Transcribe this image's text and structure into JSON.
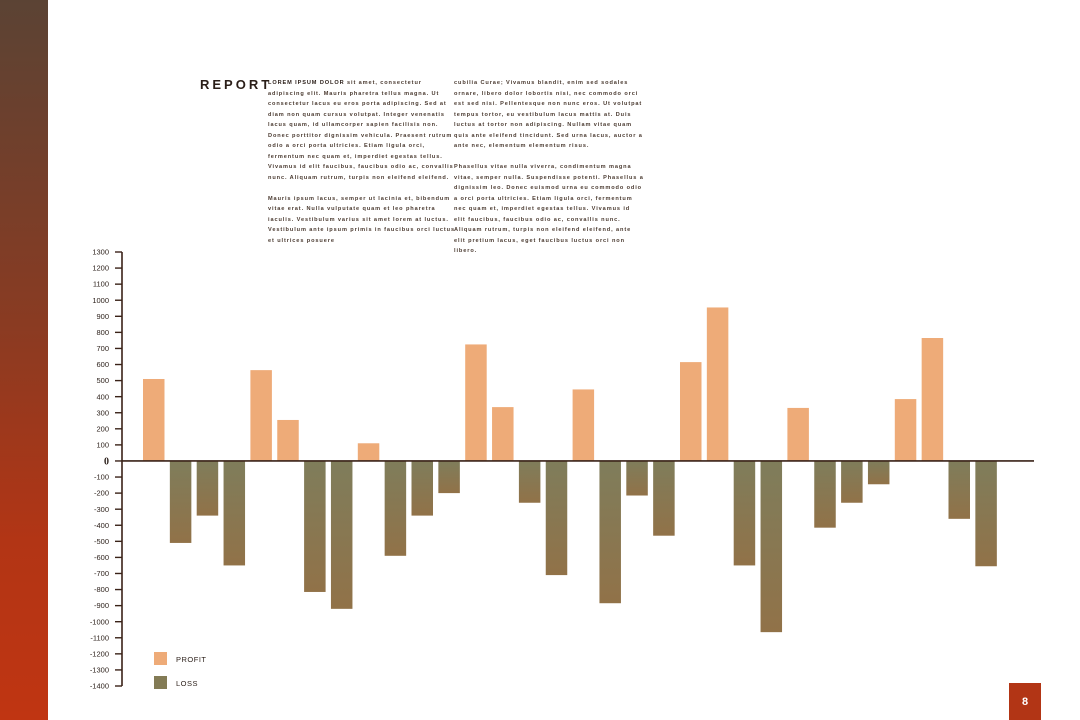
{
  "colors": {
    "accent": "#b23515",
    "profit": "#eeab78",
    "loss": "#837b55",
    "axis": "#3a2218"
  },
  "report": {
    "title": "REPORT",
    "column1": {
      "lead": "LOREM IPSUM DOLOR",
      "p1": " sit amet, consectetur adipiscing elit. Mauris pharetra tellus magna. Ut consectetur lacus eu eros porta adipiscing. Sed at diam non quam cursus volutpat. Integer venenatis lacus quam, id ullamcorper sapien facilisis non. Donec porttitor dignissim vehicula. Praesent rutrum odio a orci porta ultricies. Etiam ligula orci, fermentum nec quam et, imperdiet egestas tellus. Vivamus id elit faucibus, faucibus odio ac, convallis nunc. Aliquam rutrum, turpis non eleifend eleifend.",
      "p2": "Mauris ipsum lacus, semper ut lacinia et, bibendum vitae erat. Nulla vulputate quam et leo pharetra iaculis. Vestibulum varius sit amet lorem at luctus. Vestibulum ante ipsum primis in faucibus orci luctus et ultrices posuere"
    },
    "column2": {
      "p1": "cubilia Curae; Vivamus blandit, enim sed sodales ornare, libero dolor lobortis nisi, nec commodo orci est sed nisi. Pellentesque non nunc eros. Ut volutpat tempus tortor, eu vestibulum lacus mattis at. Duis luctus at tortor non adipiscing. Nullam vitae quam quis ante eleifend tincidunt. Sed urna lacus, auctor a ante nec, elementum elementum risus.",
      "p2": "Phasellus vitae nulla viverra, condimentum magna vitae, semper nulla. Suspendisse potenti. Phasellus a dignissim leo. Donec euismod urna eu commodo odio a orci porta ultricies. Etiam ligula orci, fermentum nec quam et, imperdiet egestas tellus. Vivamus id elit faucibus, faucibus odio ac, convallis nunc. Aliquam rutrum, turpis non eleifend eleifend, ante elit pretium lacus, eget faucibus luctus orci non libero."
    }
  },
  "chart_data": {
    "type": "bar",
    "title": "",
    "xlabel": "",
    "ylabel": "",
    "ylim": [
      -1400,
      1300
    ],
    "yticks": [
      1300,
      1200,
      1100,
      1000,
      900,
      800,
      700,
      600,
      500,
      400,
      300,
      200,
      100,
      0,
      -100,
      -200,
      -300,
      -400,
      -500,
      -600,
      -700,
      -800,
      -900,
      -1000,
      -1100,
      -1200,
      -1300,
      -1400
    ],
    "grid": false,
    "legend_position": "bottom-left",
    "legend": [
      {
        "label": "PROFIT",
        "series": "profit"
      },
      {
        "label": "LOSS",
        "series": "loss"
      }
    ],
    "bars": [
      {
        "series": "profit",
        "value": 510
      },
      {
        "series": "loss",
        "value": -510
      },
      {
        "series": "loss",
        "value": -340
      },
      {
        "series": "loss",
        "value": -650
      },
      {
        "series": "profit",
        "value": 565
      },
      {
        "series": "profit",
        "value": 255
      },
      {
        "series": "loss",
        "value": -815
      },
      {
        "series": "loss",
        "value": -920
      },
      {
        "series": "profit",
        "value": 110
      },
      {
        "series": "loss",
        "value": -590
      },
      {
        "series": "loss",
        "value": -340
      },
      {
        "series": "loss",
        "value": -200
      },
      {
        "series": "profit",
        "value": 725
      },
      {
        "series": "profit",
        "value": 335
      },
      {
        "series": "loss",
        "value": -260
      },
      {
        "series": "loss",
        "value": -710
      },
      {
        "series": "profit",
        "value": 445
      },
      {
        "series": "loss",
        "value": -885
      },
      {
        "series": "loss",
        "value": -215
      },
      {
        "series": "loss",
        "value": -465
      },
      {
        "series": "profit",
        "value": 615
      },
      {
        "series": "profit",
        "value": 955
      },
      {
        "series": "loss",
        "value": -650
      },
      {
        "series": "loss",
        "value": -1065
      },
      {
        "series": "profit",
        "value": 330
      },
      {
        "series": "loss",
        "value": -415
      },
      {
        "series": "loss",
        "value": -260
      },
      {
        "series": "loss",
        "value": -145
      },
      {
        "series": "profit",
        "value": 385
      },
      {
        "series": "profit",
        "value": 765
      },
      {
        "series": "loss",
        "value": -360
      },
      {
        "series": "loss",
        "value": -655
      }
    ]
  },
  "page": {
    "number": "8"
  }
}
